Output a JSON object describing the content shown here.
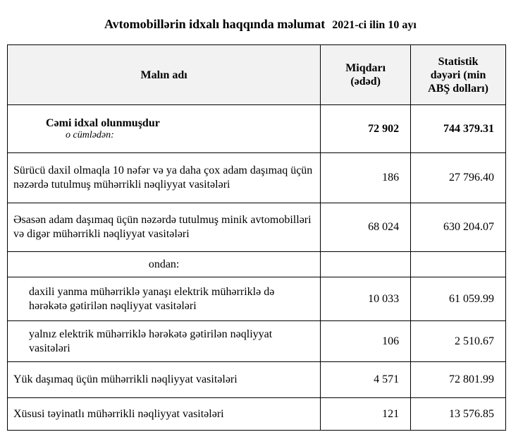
{
  "title": "Avtomobillərin idxalı haqqında məlumat",
  "period": "2021-ci ilin 10 ayı",
  "headers": {
    "name": "Malın adı",
    "quantity": "Miqdarı (ədəd)",
    "value": "Statistik dəyəri (min ABŞ dolları)"
  },
  "total": {
    "name": "Cəmi idxal olunmuşdur",
    "note": "o cümlədən:",
    "quantity": "72 902",
    "value": "744 379.31"
  },
  "rows": [
    {
      "name": "Sürücü daxil olmaqla 10 nəfər və ya daha çox adam daşımaq üçün nəzərdə tutulmuş mühərrikli nəqliyyat vasitələri",
      "quantity": "186",
      "value": "27 796.40"
    },
    {
      "name": "Əsasən adam daşımaq üçün nəzərdə tutulmuş minik avtomobilləri və digər mühərrikli nəqliyyat vasitələri",
      "quantity": "68 024",
      "value": "630 204.07"
    },
    {
      "name": "ondan:",
      "quantity": "",
      "value": ""
    },
    {
      "name": "daxili yanma mühərriklə yanaşı elektrik mühərriklə də hərəkətə gətirilən nəqliyyat vasitələri",
      "quantity": "10 033",
      "value": "61 059.99"
    },
    {
      "name": "yalnız elektrik mühərriklə hərəkətə gətirilən nəqliyyat vasitələri",
      "quantity": "106",
      "value": "2 510.67"
    },
    {
      "name": "Yük daşımaq üçün mühərrikli nəqliyyat vasitələri",
      "quantity": "4 571",
      "value": "72 801.99"
    },
    {
      "name": "Xüsusi təyinatlı mühərrikli nəqliyyat vasitələri",
      "quantity": "121",
      "value": "13 576.85"
    }
  ]
}
